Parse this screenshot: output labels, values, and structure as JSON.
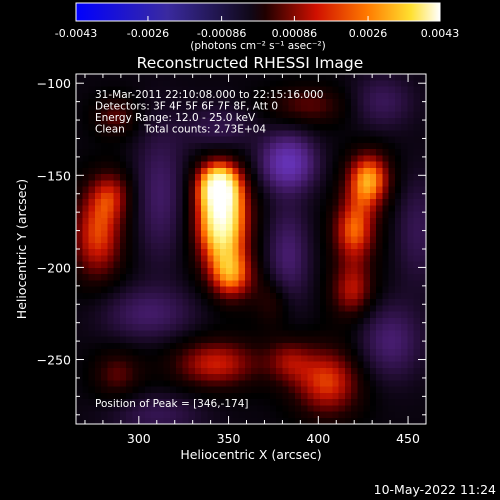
{
  "colorbar": {
    "ticks": [
      "-0.0043",
      "-0.0026",
      "-0.00086",
      "0.00086",
      "0.0026",
      "0.0043"
    ],
    "tick_values": [
      -0.0043,
      -0.0026,
      -0.00086,
      0.00086,
      0.0026,
      0.0043
    ],
    "range": [
      -0.0043,
      0.0043
    ],
    "unit_label": "(photons cm⁻² s⁻¹ asec⁻²)"
  },
  "title": "Reconstructed RHESSI Image",
  "info": {
    "time": "31-Mar-2011 22:10:08.000 to 22:15:16.000",
    "detectors": "Detectors: 3F 4F 5F 6F 7F 8F, Att 0",
    "energy": "Energy Range: 12.0 - 25.0 keV",
    "clean_label": "Clean",
    "counts": "Total counts: 2.73E+04"
  },
  "peak_text": "Position of Peak = [346,-174]",
  "footer_date": "10-May-2022 11:24",
  "chart_data": {
    "type": "heatmap",
    "title": "Reconstructed RHESSI Image",
    "xlabel": "Heliocentric X (arcsec)",
    "ylabel": "Heliocentric Y (arcsec)",
    "xlim": [
      265,
      460
    ],
    "ylim": [
      -285,
      -95
    ],
    "xticks": [
      300,
      350,
      400,
      450
    ],
    "yticks": [
      -100,
      -150,
      -200,
      -250
    ],
    "colormap": "black-purple-blue / red-orange-yellow-white",
    "sources": [
      {
        "x": 346,
        "y": -174,
        "sx": 11,
        "sy": 19,
        "amp": 1.0
      },
      {
        "x": 344,
        "y": -154,
        "sx": 9,
        "sy": 9,
        "amp": 0.55
      },
      {
        "x": 352,
        "y": -205,
        "sx": 9,
        "sy": 10,
        "amp": 0.5
      },
      {
        "x": 428,
        "y": -152,
        "sx": 9,
        "sy": 11,
        "amp": 0.7
      },
      {
        "x": 420,
        "y": -180,
        "sx": 9,
        "sy": 13,
        "amp": 0.6
      },
      {
        "x": 419,
        "y": -213,
        "sx": 9,
        "sy": 11,
        "amp": 0.45
      },
      {
        "x": 277,
        "y": -183,
        "sx": 11,
        "sy": 18,
        "amp": 0.55
      },
      {
        "x": 285,
        "y": -160,
        "sx": 9,
        "sy": 10,
        "amp": 0.35
      },
      {
        "x": 343,
        "y": -252,
        "sx": 18,
        "sy": 10,
        "amp": 0.5
      },
      {
        "x": 405,
        "y": -262,
        "sx": 14,
        "sy": 14,
        "amp": 0.55
      },
      {
        "x": 383,
        "y": -250,
        "sx": 9,
        "sy": 9,
        "amp": 0.3
      },
      {
        "x": 287,
        "y": -118,
        "sx": 9,
        "sy": 8,
        "amp": 0.3
      },
      {
        "x": 395,
        "y": -112,
        "sx": 18,
        "sy": 8,
        "amp": 0.3
      },
      {
        "x": 288,
        "y": -258,
        "sx": 10,
        "sy": 10,
        "amp": 0.3
      },
      {
        "x": 376,
        "y": -218,
        "sx": 8,
        "sy": 10,
        "amp": 0.3
      },
      {
        "x": 383,
        "y": -143,
        "sx": 10,
        "sy": 10,
        "amp": -0.95
      },
      {
        "x": 345,
        "y": -125,
        "sx": 14,
        "sy": 9,
        "amp": -0.3
      },
      {
        "x": 312,
        "y": -160,
        "sx": 10,
        "sy": 25,
        "amp": -0.4
      },
      {
        "x": 383,
        "y": -195,
        "sx": 8,
        "sy": 20,
        "amp": -0.45
      },
      {
        "x": 305,
        "y": -225,
        "sx": 18,
        "sy": 10,
        "amp": -0.4
      },
      {
        "x": 440,
        "y": -240,
        "sx": 12,
        "sy": 14,
        "amp": -0.45
      },
      {
        "x": 310,
        "y": -280,
        "sx": 18,
        "sy": 8,
        "amp": -0.3
      },
      {
        "x": 435,
        "y": -110,
        "sx": 12,
        "sy": 10,
        "amp": -0.35
      },
      {
        "x": 455,
        "y": -180,
        "sx": 8,
        "sy": 20,
        "amp": -0.3
      }
    ]
  }
}
